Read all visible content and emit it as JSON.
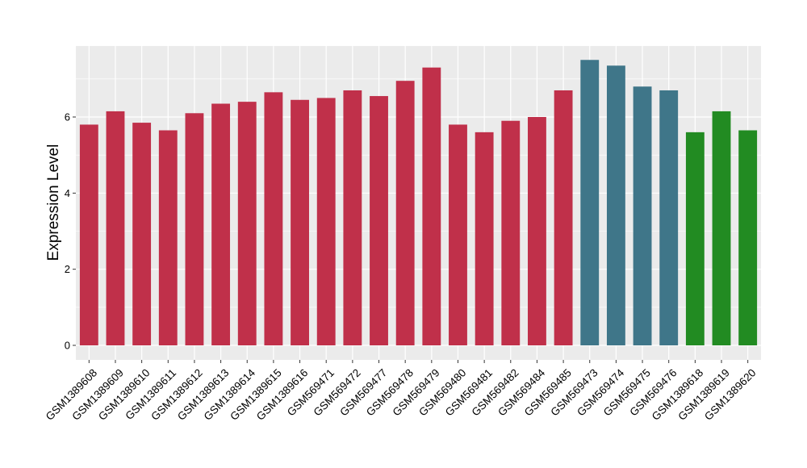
{
  "chart_data": {
    "type": "bar",
    "title": "",
    "xlabel": "",
    "ylabel": "Expression Level",
    "ylim": [
      0,
      7.8
    ],
    "yticks": [
      0,
      2,
      4,
      6
    ],
    "grid": true,
    "legend": "none",
    "categories": [
      "GSM1389608",
      "GSM1389609",
      "GSM1389610",
      "GSM1389611",
      "GSM1389612",
      "GSM1389613",
      "GSM1389614",
      "GSM1389615",
      "GSM1389616",
      "GSM569471",
      "GSM569472",
      "GSM569477",
      "GSM569478",
      "GSM569479",
      "GSM569480",
      "GSM569481",
      "GSM569482",
      "GSM569484",
      "GSM569485",
      "GSM569473",
      "GSM569474",
      "GSM569475",
      "GSM569476",
      "GSM1389618",
      "GSM1389619",
      "GSM1389620"
    ],
    "values": [
      5.8,
      6.15,
      5.85,
      5.65,
      6.1,
      6.35,
      6.4,
      6.65,
      6.45,
      6.5,
      6.7,
      6.55,
      6.95,
      7.3,
      5.8,
      5.6,
      5.9,
      6.0,
      6.7,
      7.5,
      7.35,
      6.8,
      6.7,
      5.6,
      6.15,
      5.65
    ],
    "bar_colors": [
      "#C0304A",
      "#C0304A",
      "#C0304A",
      "#C0304A",
      "#C0304A",
      "#C0304A",
      "#C0304A",
      "#C0304A",
      "#C0304A",
      "#C0304A",
      "#C0304A",
      "#C0304A",
      "#C0304A",
      "#C0304A",
      "#C0304A",
      "#C0304A",
      "#C0304A",
      "#C0304A",
      "#C0304A",
      "#3F7689",
      "#3F7689",
      "#3F7689",
      "#3F7689",
      "#228B22",
      "#228B22",
      "#228B22"
    ],
    "panel_background": "#EBEBEB",
    "grid_color": "#FFFFFF"
  }
}
